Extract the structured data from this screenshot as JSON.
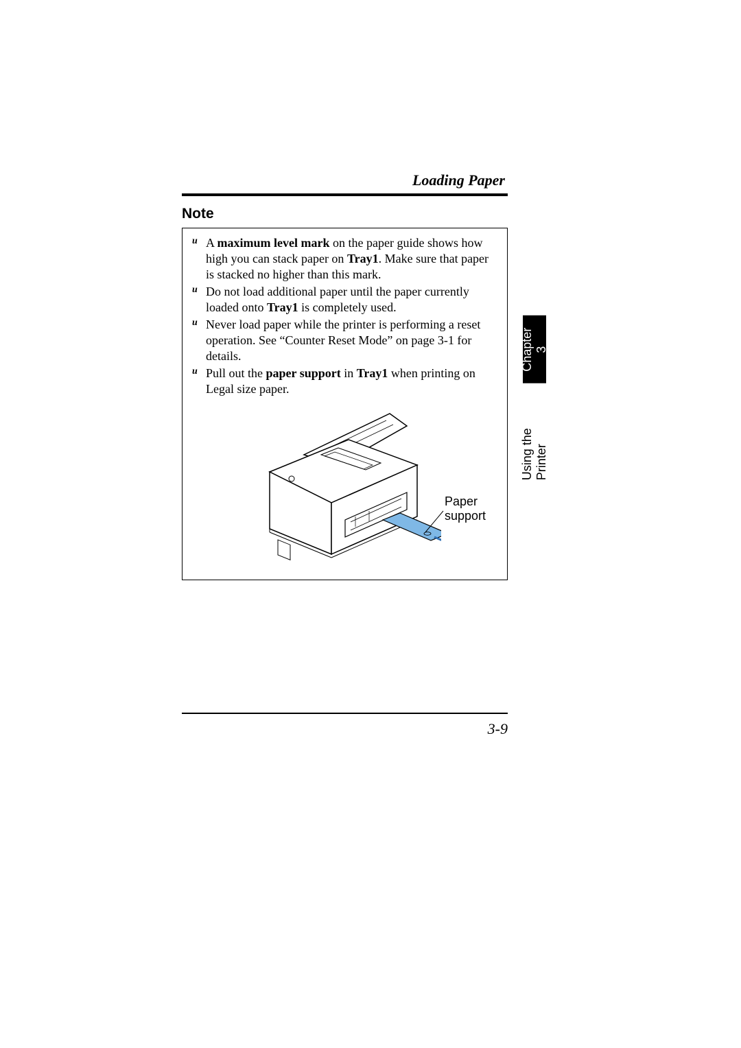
{
  "header": {
    "title": "Loading Paper"
  },
  "note": {
    "heading": "Note",
    "items": [
      {
        "bullet": "u",
        "parts": [
          {
            "text": "A ",
            "bold": false
          },
          {
            "text": "maximum level mark",
            "bold": true
          },
          {
            "text": " on the paper guide shows how high you can stack paper on ",
            "bold": false
          },
          {
            "text": "Tray1",
            "bold": true
          },
          {
            "text": ". Make sure that paper is stacked no higher than this mark.",
            "bold": false
          }
        ]
      },
      {
        "bullet": "u",
        "parts": [
          {
            "text": "Do not load additional paper until the paper currently loaded onto ",
            "bold": false
          },
          {
            "text": "Tray1",
            "bold": true
          },
          {
            "text": " is completely used.",
            "bold": false
          }
        ]
      },
      {
        "bullet": "u",
        "parts": [
          {
            "text": "Never load paper while the printer is performing a reset operation. See “Counter Reset Mode” on page 3-1 for details.",
            "bold": false
          }
        ]
      },
      {
        "bullet": "u",
        "parts": [
          {
            "text": "Pull out the ",
            "bold": false
          },
          {
            "text": "paper support",
            "bold": true
          },
          {
            "text": " in ",
            "bold": false
          },
          {
            "text": "Tray1",
            "bold": true
          },
          {
            "text": " when printing on Legal size paper.",
            "bold": false
          }
        ]
      }
    ],
    "callout_label": "Paper support"
  },
  "side_tab": {
    "chapter": "Chapter 3",
    "section": "Using the Printer"
  },
  "footer": {
    "page_number": "3-9"
  },
  "colors": {
    "paper_support_fill": "#7fb8e6",
    "arrow_fill": "#2f6fb3",
    "black": "#000000"
  }
}
